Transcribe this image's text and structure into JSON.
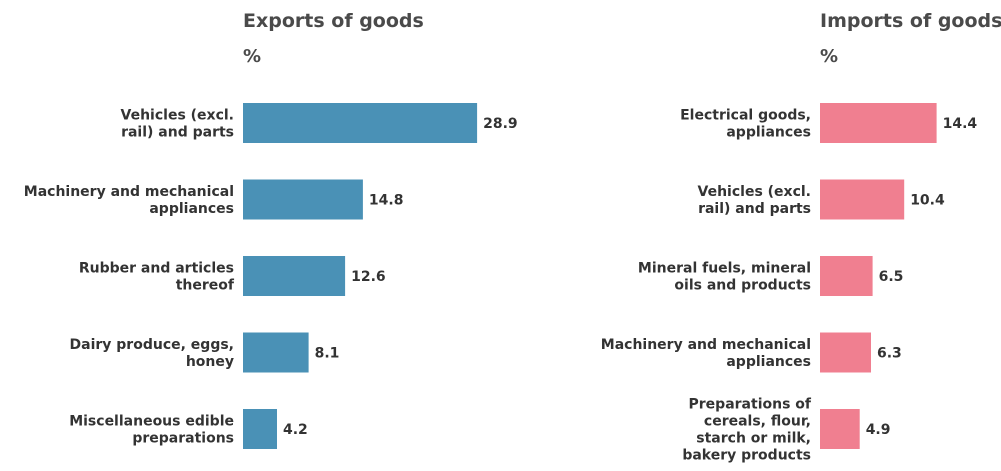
{
  "chart_data": [
    {
      "type": "bar",
      "orientation": "horizontal",
      "title": "Exports of goods",
      "unit": "%",
      "color": "#4a91b6",
      "categories": [
        [
          "Vehicles (excl.",
          "rail) and parts"
        ],
        [
          "Machinery and mechanical",
          "appliances"
        ],
        [
          "Rubber and articles",
          "thereof"
        ],
        [
          "Dairy produce, eggs,",
          "honey"
        ],
        [
          "Miscellaneous edible",
          "preparations"
        ]
      ],
      "values": [
        28.9,
        14.8,
        12.6,
        8.1,
        4.2
      ],
      "grid": false,
      "legend": "none"
    },
    {
      "type": "bar",
      "orientation": "horizontal",
      "title": "Imports of goods",
      "unit": "%",
      "color": "#f07f90",
      "categories": [
        [
          "Electrical goods,",
          "appliances"
        ],
        [
          "Vehicles (excl.",
          "rail) and parts"
        ],
        [
          "Mineral fuels, mineral",
          "oils and products"
        ],
        [
          "Machinery and mechanical",
          "appliances"
        ],
        [
          "Preparations of",
          "cereals, flour,",
          "starch or milk,",
          "bakery products"
        ]
      ],
      "values": [
        14.4,
        10.4,
        6.5,
        6.3,
        4.9
      ],
      "grid": false,
      "legend": "none"
    }
  ]
}
